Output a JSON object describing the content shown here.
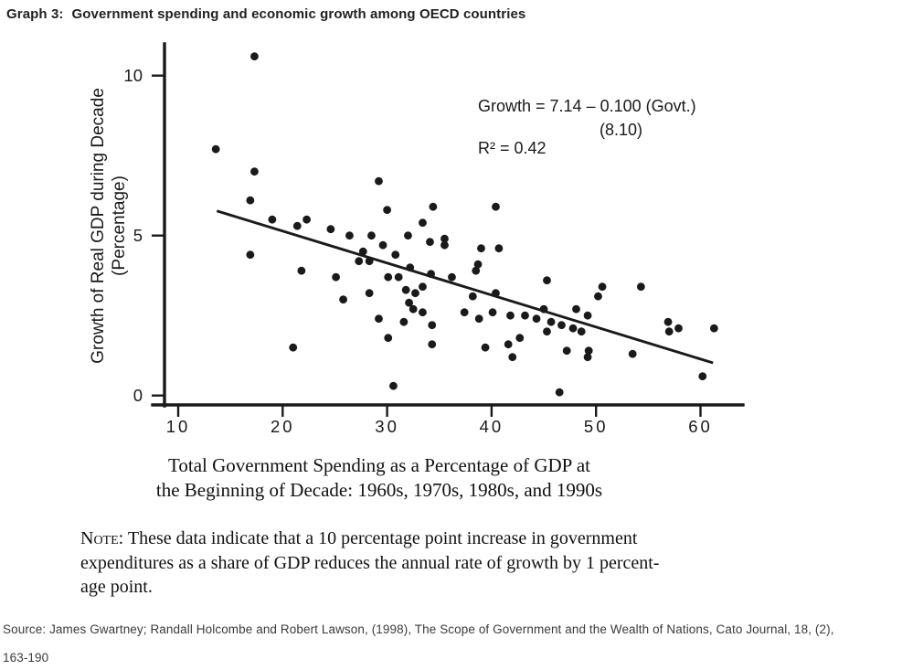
{
  "title": {
    "label": "Graph 3:",
    "text": "Government spending and economic growth among OECD countries"
  },
  "chart_data": {
    "type": "scatter",
    "title": "Graph 3: Government spending and economic growth among OECD countries",
    "xlabel": "Total Government Spending as a Percentage of GDP at the Beginning of Decade: 1960s, 1970s, 1980s, and 1990s",
    "xlabel_lines": [
      "Total Government Spending as a Percentage of GDP at",
      "the Beginning of Decade: 1960s, 1970s, 1980s, and 1990s"
    ],
    "ylabel": "Growth of Real GDP during Decade (Percentage)",
    "ylabel_lines": [
      "Growth of Real GDP during Decade",
      "(Percentage)"
    ],
    "x_ticks": [
      10,
      20,
      30,
      40,
      50,
      60
    ],
    "y_ticks": [
      0,
      5,
      10
    ],
    "xlim": [
      7,
      64
    ],
    "ylim": [
      -0.35,
      11
    ],
    "grid": false,
    "annotation": {
      "equation": "Growth = 7.14 – 0.100 (Govt.)",
      "t_stat": "(8.10)",
      "r_squared": "R² = 0.42"
    },
    "trendline": {
      "intercept": 7.14,
      "slope": -0.1,
      "x_start": 13.7,
      "x_end": 61.2
    },
    "points": [
      [
        17.3,
        10.6
      ],
      [
        13.6,
        7.7
      ],
      [
        17.3,
        7.0
      ],
      [
        16.9,
        6.1
      ],
      [
        29.2,
        6.7
      ],
      [
        30.0,
        5.8
      ],
      [
        19.0,
        5.5
      ],
      [
        21.4,
        5.3
      ],
      [
        22.3,
        5.5
      ],
      [
        24.6,
        5.2
      ],
      [
        28.5,
        5.0
      ],
      [
        33.4,
        5.4
      ],
      [
        34.4,
        5.9
      ],
      [
        40.4,
        5.9
      ],
      [
        26.4,
        5.0
      ],
      [
        29.6,
        4.7
      ],
      [
        32.0,
        5.0
      ],
      [
        34.1,
        4.8
      ],
      [
        35.5,
        4.9
      ],
      [
        35.5,
        4.7
      ],
      [
        39.0,
        4.6
      ],
      [
        40.7,
        4.6
      ],
      [
        16.9,
        4.4
      ],
      [
        27.7,
        4.5
      ],
      [
        27.3,
        4.2
      ],
      [
        28.3,
        4.2
      ],
      [
        30.8,
        4.4
      ],
      [
        32.2,
        4.0
      ],
      [
        38.7,
        4.1
      ],
      [
        38.5,
        3.9
      ],
      [
        30.1,
        3.7
      ],
      [
        31.1,
        3.7
      ],
      [
        34.2,
        3.8
      ],
      [
        36.2,
        3.7
      ],
      [
        21.8,
        3.9
      ],
      [
        25.1,
        3.7
      ],
      [
        45.3,
        3.6
      ],
      [
        50.6,
        3.4
      ],
      [
        54.3,
        3.4
      ],
      [
        50.2,
        3.1
      ],
      [
        31.8,
        3.3
      ],
      [
        33.4,
        3.4
      ],
      [
        32.7,
        3.2
      ],
      [
        32.1,
        2.9
      ],
      [
        32.5,
        2.7
      ],
      [
        33.4,
        2.6
      ],
      [
        38.2,
        3.1
      ],
      [
        40.4,
        3.2
      ],
      [
        25.8,
        3.0
      ],
      [
        28.3,
        3.2
      ],
      [
        29.2,
        2.4
      ],
      [
        31.6,
        2.3
      ],
      [
        34.3,
        2.2
      ],
      [
        37.4,
        2.6
      ],
      [
        38.8,
        2.4
      ],
      [
        40.1,
        2.6
      ],
      [
        41.8,
        2.5
      ],
      [
        43.2,
        2.5
      ],
      [
        44.3,
        2.4
      ],
      [
        45.0,
        2.7
      ],
      [
        48.1,
        2.7
      ],
      [
        49.2,
        2.5
      ],
      [
        45.7,
        2.3
      ],
      [
        46.7,
        2.2
      ],
      [
        47.8,
        2.1
      ],
      [
        48.6,
        2.0
      ],
      [
        45.3,
        2.0
      ],
      [
        42.7,
        1.8
      ],
      [
        41.6,
        1.6
      ],
      [
        30.1,
        1.8
      ],
      [
        34.3,
        1.6
      ],
      [
        39.4,
        1.5
      ],
      [
        21.0,
        1.5
      ],
      [
        47.2,
        1.4
      ],
      [
        49.3,
        1.4
      ],
      [
        49.2,
        1.2
      ],
      [
        42.0,
        1.2
      ],
      [
        53.5,
        1.3
      ],
      [
        56.9,
        2.3
      ],
      [
        57.9,
        2.1
      ],
      [
        57.0,
        2.0
      ],
      [
        61.3,
        2.1
      ],
      [
        60.2,
        0.6
      ],
      [
        46.5,
        0.1
      ],
      [
        30.6,
        0.3
      ]
    ],
    "point_color": "#1a1a1a",
    "line_color": "#1a1a1a"
  },
  "note": {
    "prefix": "Note:",
    "line1": " These data indicate that a 10 percentage point increase in government",
    "line2": "expenditures as a share of GDP reduces the annual rate of growth by 1 percent-",
    "line3": "age point."
  },
  "source": {
    "line1": "Source: James Gwartney; Randall Holcombe and Robert Lawson, (1998), The Scope of Government and the Wealth of Nations, Cato Journal, 18, (2),",
    "line2": "163-190"
  }
}
